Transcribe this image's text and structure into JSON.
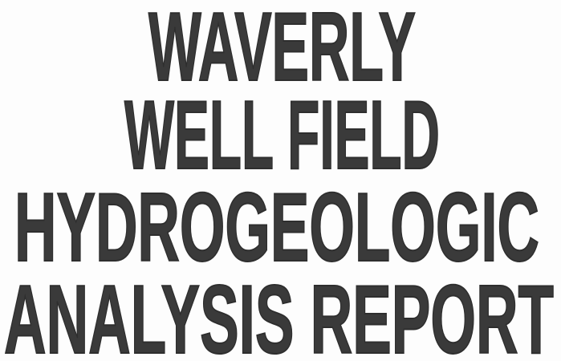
{
  "title_lines": [
    "WAVERLY",
    "WELL FIELD",
    "HYDROGEOLOGIC",
    "ANALYSIS REPORT"
  ]
}
